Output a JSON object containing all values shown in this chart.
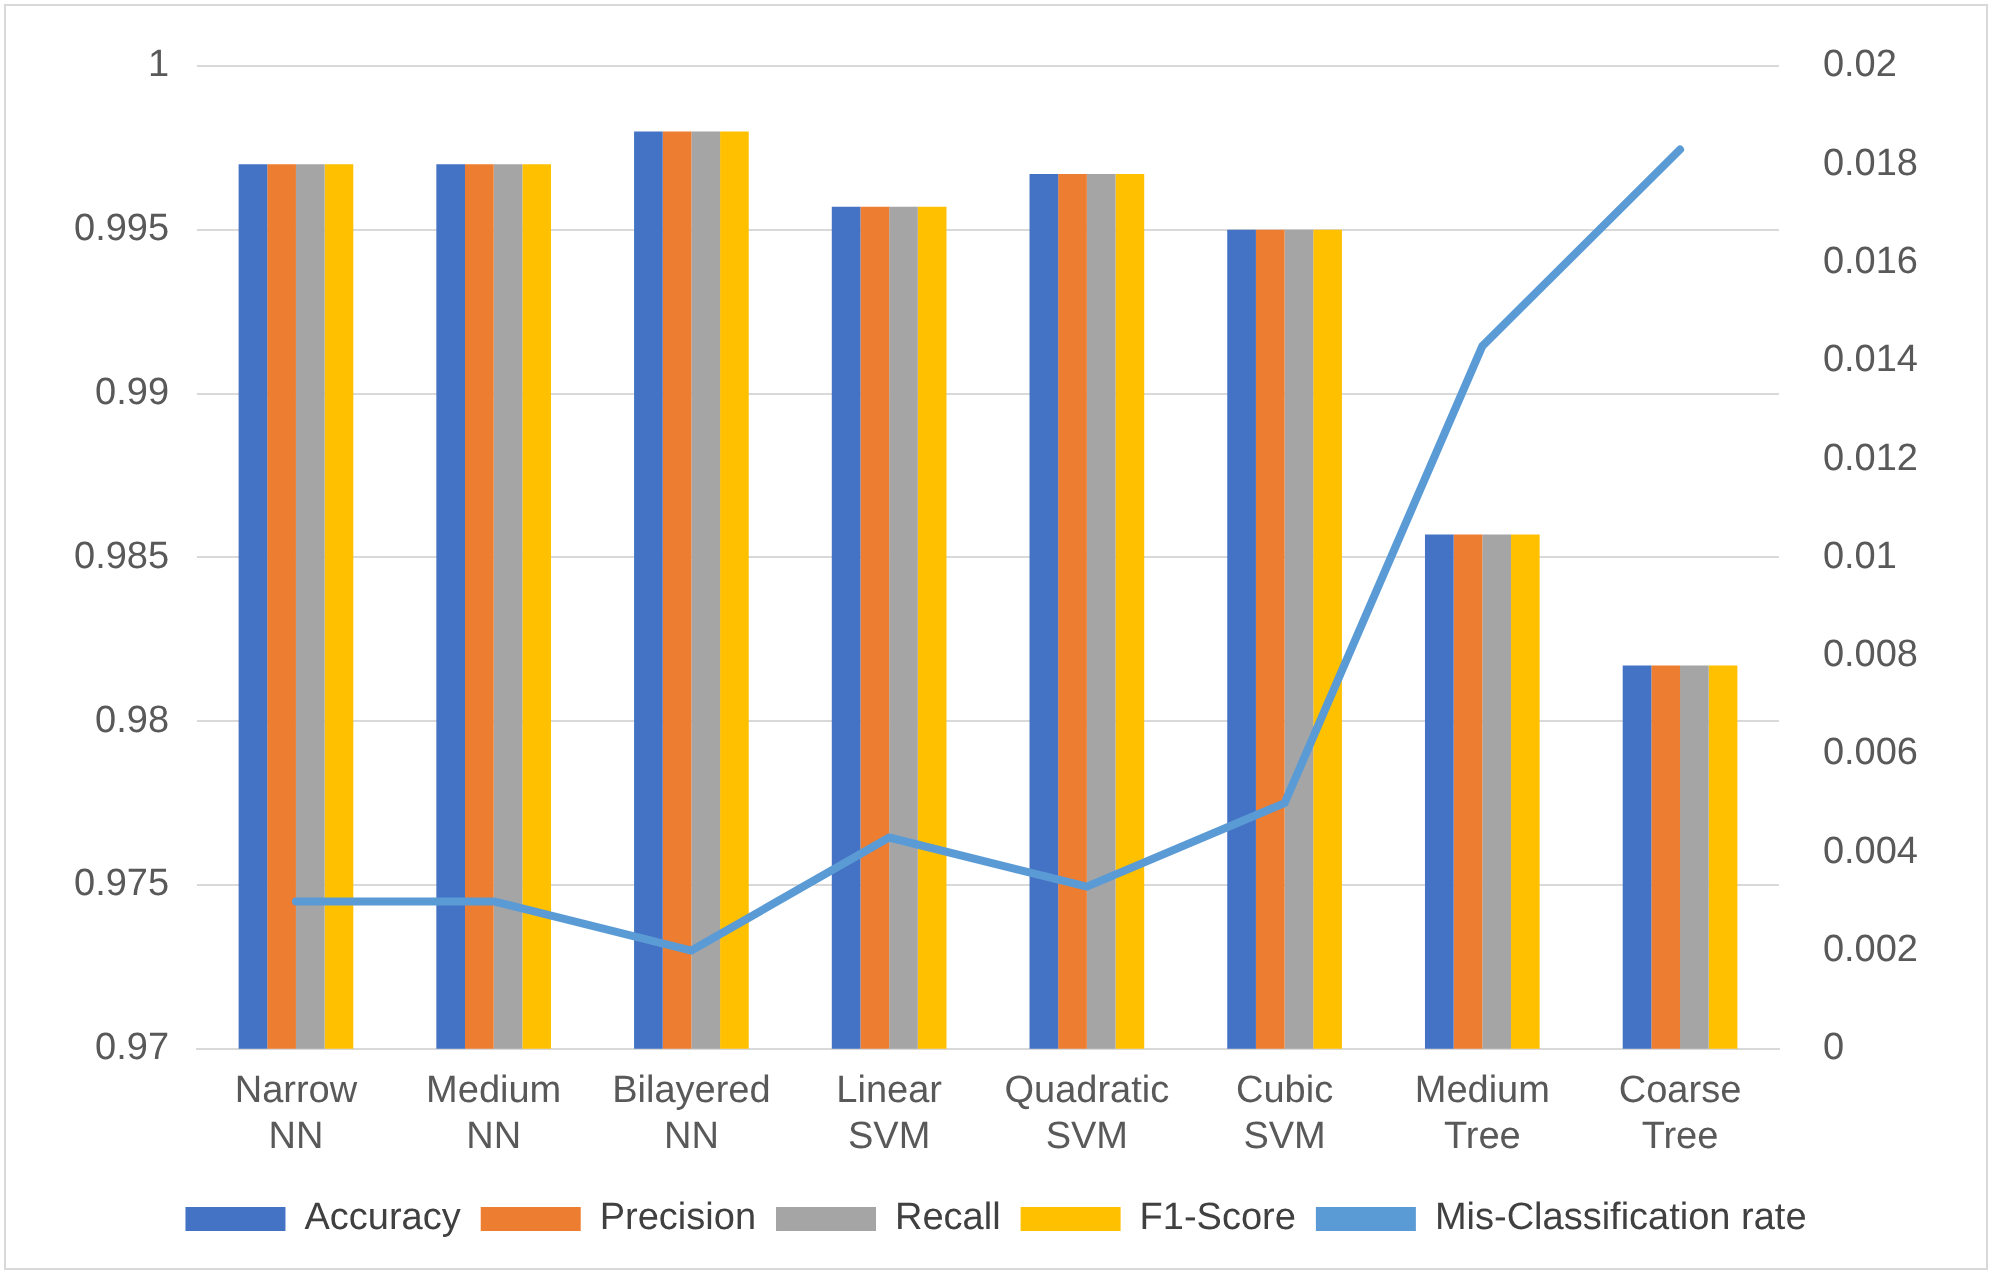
{
  "chart_data": {
    "type": "bar",
    "categories": [
      "Narrow NN",
      "Medium NN",
      "Bilayered NN",
      "Linear SVM",
      "Quadratic SVM",
      "Cubic SVM",
      "Medium Tree",
      "Coarse Tree"
    ],
    "series": [
      {
        "name": "Accuracy",
        "color": "#4472c4",
        "values": [
          0.997,
          0.997,
          0.998,
          0.9957,
          0.9967,
          0.995,
          0.9857,
          0.9817
        ]
      },
      {
        "name": "Precision",
        "color": "#ed7d31",
        "values": [
          0.997,
          0.997,
          0.998,
          0.9957,
          0.9967,
          0.995,
          0.9857,
          0.9817
        ]
      },
      {
        "name": "Recall",
        "color": "#a5a5a5",
        "values": [
          0.997,
          0.997,
          0.998,
          0.9957,
          0.9967,
          0.995,
          0.9857,
          0.9817
        ]
      },
      {
        "name": "F1-Score",
        "color": "#ffc000",
        "values": [
          0.997,
          0.997,
          0.998,
          0.9957,
          0.9967,
          0.995,
          0.9857,
          0.9817
        ]
      },
      {
        "name": "Mis-Classification rate",
        "type": "line",
        "axis": "y2",
        "color": "#5b9bd5",
        "values": [
          0.003,
          0.003,
          0.002,
          0.0043,
          0.0033,
          0.005,
          0.0143,
          0.0183
        ]
      }
    ],
    "ylim": [
      0.97,
      1
    ],
    "yticks": [
      0.97,
      0.975,
      0.98,
      0.985,
      0.99,
      0.995,
      1
    ],
    "y2lim": [
      0,
      0.02
    ],
    "y2ticks": [
      0,
      0.002,
      0.004,
      0.006,
      0.008,
      0.01,
      0.012,
      0.014,
      0.016,
      0.018,
      0.02
    ],
    "grid": "y",
    "legend": "bottom",
    "marker": "none"
  }
}
